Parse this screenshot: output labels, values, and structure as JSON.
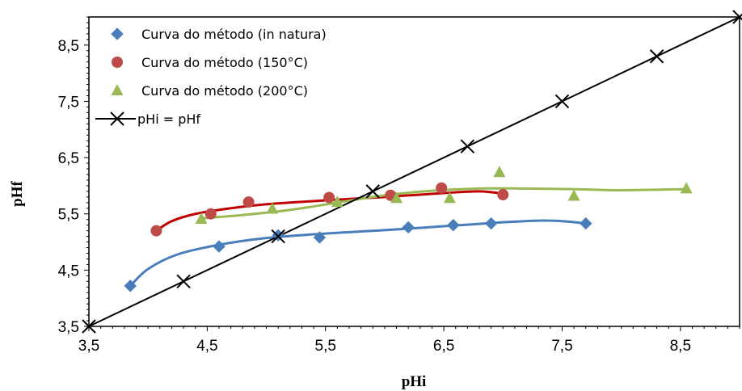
{
  "chart_data": {
    "type": "scatter",
    "title": "",
    "xlabel": "pHi",
    "ylabel": "pHf",
    "xlim": [
      3.5,
      9.0
    ],
    "ylim": [
      3.5,
      9.0
    ],
    "x_ticks": [
      3.5,
      4.5,
      5.5,
      6.5,
      7.5,
      8.5
    ],
    "x_tick_labels": [
      "3,5",
      "4,5",
      "5,5",
      "6,5",
      "7,5",
      "8,5"
    ],
    "y_ticks": [
      3.5,
      4.5,
      5.5,
      6.5,
      7.5,
      8.5
    ],
    "y_tick_labels": [
      "3,5",
      "4,5",
      "5,5",
      "6,5",
      "7,5",
      "8,5"
    ],
    "grid": false,
    "legend_position": "top-left",
    "series": [
      {
        "name": "Curva do método (in natura)",
        "marker": "diamond",
        "color": "#4a7ebb",
        "points": [
          [
            3.85,
            4.22
          ],
          [
            4.6,
            4.92
          ],
          [
            5.1,
            5.12
          ],
          [
            5.45,
            5.08
          ],
          [
            6.2,
            5.26
          ],
          [
            6.58,
            5.3
          ],
          [
            6.9,
            5.33
          ],
          [
            7.7,
            5.33
          ]
        ],
        "trend": [
          [
            3.85,
            4.22
          ],
          [
            4.0,
            4.52
          ],
          [
            4.25,
            4.78
          ],
          [
            4.6,
            4.95
          ],
          [
            5.0,
            5.07
          ],
          [
            5.5,
            5.15
          ],
          [
            6.0,
            5.21
          ],
          [
            6.5,
            5.28
          ],
          [
            7.0,
            5.35
          ],
          [
            7.3,
            5.38
          ],
          [
            7.5,
            5.37
          ],
          [
            7.7,
            5.33
          ]
        ]
      },
      {
        "name": "Curva do método (150°C)",
        "marker": "circle",
        "color": "#be4b48",
        "points": [
          [
            4.07,
            5.2
          ],
          [
            4.53,
            5.5
          ],
          [
            4.85,
            5.71
          ],
          [
            5.53,
            5.79
          ],
          [
            6.05,
            5.83
          ],
          [
            6.48,
            5.96
          ],
          [
            7.0,
            5.84
          ]
        ],
        "trend": [
          [
            4.07,
            5.2
          ],
          [
            4.2,
            5.37
          ],
          [
            4.4,
            5.5
          ],
          [
            4.7,
            5.6
          ],
          [
            5.0,
            5.67
          ],
          [
            5.5,
            5.74
          ],
          [
            6.0,
            5.8
          ],
          [
            6.5,
            5.87
          ],
          [
            6.8,
            5.9
          ],
          [
            7.0,
            5.86
          ]
        ]
      },
      {
        "name": "Curva do método (200°C)",
        "marker": "triangle",
        "color": "#98b954",
        "points": [
          [
            4.45,
            5.41
          ],
          [
            5.05,
            5.59
          ],
          [
            5.6,
            5.71
          ],
          [
            6.1,
            5.78
          ],
          [
            6.55,
            5.78
          ],
          [
            6.97,
            6.24
          ],
          [
            7.6,
            5.82
          ],
          [
            8.55,
            5.95
          ]
        ],
        "trend": [
          [
            4.45,
            5.42
          ],
          [
            4.8,
            5.48
          ],
          [
            5.2,
            5.57
          ],
          [
            5.6,
            5.7
          ],
          [
            6.0,
            5.83
          ],
          [
            6.4,
            5.91
          ],
          [
            6.8,
            5.95
          ],
          [
            7.2,
            5.95
          ],
          [
            7.6,
            5.94
          ],
          [
            8.0,
            5.92
          ],
          [
            8.55,
            5.94
          ]
        ]
      },
      {
        "name": "pHi = pHf",
        "marker": "x",
        "color": "#000000",
        "points": [
          [
            3.5,
            3.5
          ],
          [
            4.3,
            4.3
          ],
          [
            5.1,
            5.1
          ],
          [
            5.9,
            5.9
          ],
          [
            6.7,
            6.7
          ],
          [
            7.5,
            7.5
          ],
          [
            8.3,
            8.3
          ],
          [
            9.0,
            9.0
          ]
        ],
        "trend": [
          [
            3.5,
            3.5
          ],
          [
            9.0,
            9.0
          ]
        ]
      }
    ]
  }
}
